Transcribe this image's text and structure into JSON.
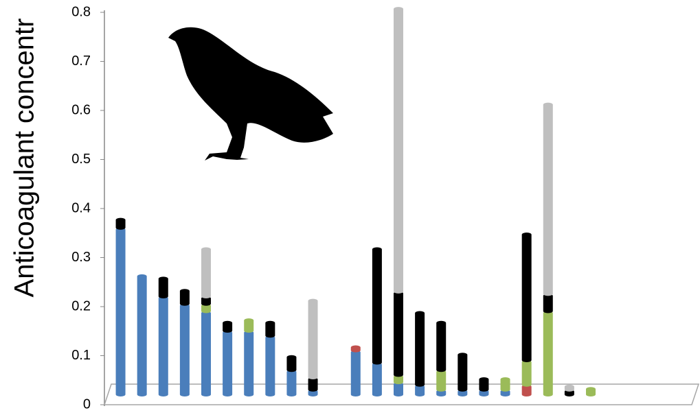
{
  "chart_data": {
    "type": "stacked_bar",
    "y_label": "Anticoagulant concentr",
    "categories": [
      null,
      null,
      null,
      null,
      null,
      null,
      null,
      null,
      null,
      null,
      null,
      null,
      null,
      null,
      null,
      null,
      null,
      null,
      null,
      null,
      null,
      null,
      null,
      null,
      null,
      null,
      null
    ],
    "series": [
      {
        "color": "#4a7ebb",
        "values": [
          0.34,
          0.245,
          0.2,
          0.185,
          0.17,
          0.13,
          0.13,
          0.12,
          0.05,
          0.01,
          null,
          0.09,
          0.065,
          0.025,
          0.02,
          0.01,
          0.01,
          0.01,
          0.01,
          null,
          null,
          null,
          null,
          null,
          null,
          null,
          null
        ]
      },
      {
        "color": "#c0504d",
        "values": [
          null,
          null,
          null,
          null,
          null,
          null,
          null,
          null,
          null,
          null,
          null,
          0.01,
          null,
          null,
          null,
          null,
          null,
          null,
          null,
          0.02,
          null,
          null,
          null,
          null,
          null,
          null,
          null
        ]
      },
      {
        "color": "#9bbb59",
        "values": [
          null,
          null,
          null,
          null,
          0.015,
          null,
          0.025,
          null,
          null,
          null,
          null,
          null,
          null,
          0.015,
          null,
          0.04,
          null,
          null,
          0.025,
          0.05,
          0.17,
          null,
          0.015,
          null,
          null,
          null,
          null
        ]
      },
      {
        "color": "#000000",
        "values": [
          0.02,
          null,
          0.04,
          0.03,
          0.015,
          0.02,
          null,
          0.03,
          0.03,
          0.025,
          null,
          null,
          0.235,
          0.17,
          0.15,
          0.1,
          0.075,
          0.025,
          null,
          0.26,
          0.035,
          0.01,
          null,
          null,
          null,
          null,
          null
        ]
      },
      {
        "color": "#bfbfbf",
        "values": [
          null,
          null,
          null,
          null,
          0.1,
          null,
          null,
          null,
          null,
          0.16,
          null,
          null,
          null,
          0.58,
          null,
          null,
          null,
          null,
          null,
          null,
          0.39,
          0.01,
          null,
          null,
          null,
          null,
          null
        ]
      }
    ],
    "ylim": [
      0,
      0.8
    ],
    "yticks": [
      0,
      0.1,
      0.2,
      0.3,
      0.4,
      0.5,
      0.6,
      0.7,
      0.8
    ]
  }
}
